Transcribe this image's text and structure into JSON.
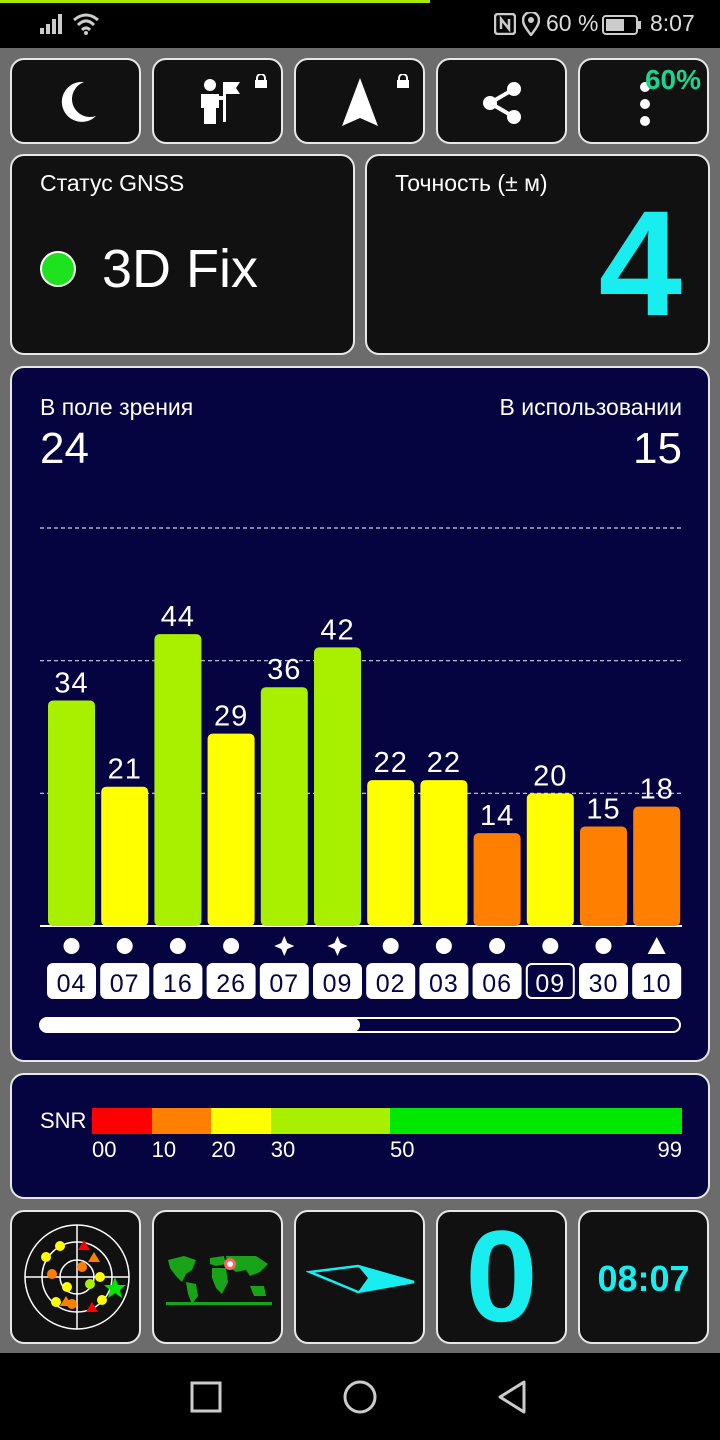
{
  "status_bar": {
    "battery_percent": "60 %",
    "time": "8:07",
    "icons": [
      "signal-icon",
      "wifi-icon",
      "nfc-icon",
      "location-icon",
      "battery-icon"
    ]
  },
  "toolbar": {
    "buttons": [
      {
        "name": "night-mode",
        "icon": "moon-icon",
        "locked": false
      },
      {
        "name": "user-poi",
        "icon": "person-flag-icon",
        "locked": true
      },
      {
        "name": "navigate",
        "icon": "navigation-arrow-icon",
        "locked": true
      },
      {
        "name": "share",
        "icon": "share-icon",
        "locked": false
      },
      {
        "name": "menu",
        "icon": "more-vertical-icon",
        "locked": false
      }
    ],
    "battery_badge": "60%"
  },
  "gnss_status": {
    "label": "Статус GNSS",
    "value": "3D Fix",
    "color": "#1ee21e"
  },
  "accuracy": {
    "label": "Точность (± м)",
    "value": "4"
  },
  "satellites": {
    "in_view_label": "В поле зрения",
    "in_view": "24",
    "in_use_label": "В использовании",
    "in_use": "15",
    "scroll_fraction": 0.5
  },
  "chart_data": {
    "type": "bar",
    "categories": [
      "04",
      "07",
      "16",
      "26",
      "07",
      "09",
      "02",
      "03",
      "06",
      "09",
      "30",
      "10"
    ],
    "values": [
      34,
      21,
      44,
      29,
      36,
      42,
      22,
      22,
      14,
      20,
      15,
      18
    ],
    "markers": [
      "circle",
      "circle",
      "circle",
      "circle",
      "star",
      "star",
      "circle",
      "circle",
      "circle",
      "circle",
      "circle",
      "triangle"
    ],
    "highlighted": [
      false,
      false,
      false,
      false,
      false,
      false,
      false,
      false,
      false,
      true,
      false,
      false
    ],
    "ylim": [
      0,
      60
    ],
    "gridlines": [
      20,
      40,
      60
    ]
  },
  "snr_legend": {
    "label": "SNR",
    "segments": [
      {
        "from": 0,
        "to": 10,
        "color": "#ff0000"
      },
      {
        "from": 10,
        "to": 20,
        "color": "#ff8000"
      },
      {
        "from": 20,
        "to": 30,
        "color": "#ffff00"
      },
      {
        "from": 30,
        "to": 50,
        "color": "#a8f000"
      },
      {
        "from": 50,
        "to": 99,
        "color": "#00e800"
      }
    ],
    "ticks": [
      "00",
      "10",
      "20",
      "30",
      "50",
      "99"
    ]
  },
  "bottom_tiles": {
    "radar": "radar-icon",
    "map": "world-map-icon",
    "compass": "compass-needle-icon",
    "speed": "0",
    "time": "08:07"
  },
  "colors": {
    "cyan": "#18eef0",
    "navy": "#050441",
    "bar_green": "#a8f000",
    "bar_yellow": "#ffff00",
    "bar_orange": "#ff8000"
  }
}
